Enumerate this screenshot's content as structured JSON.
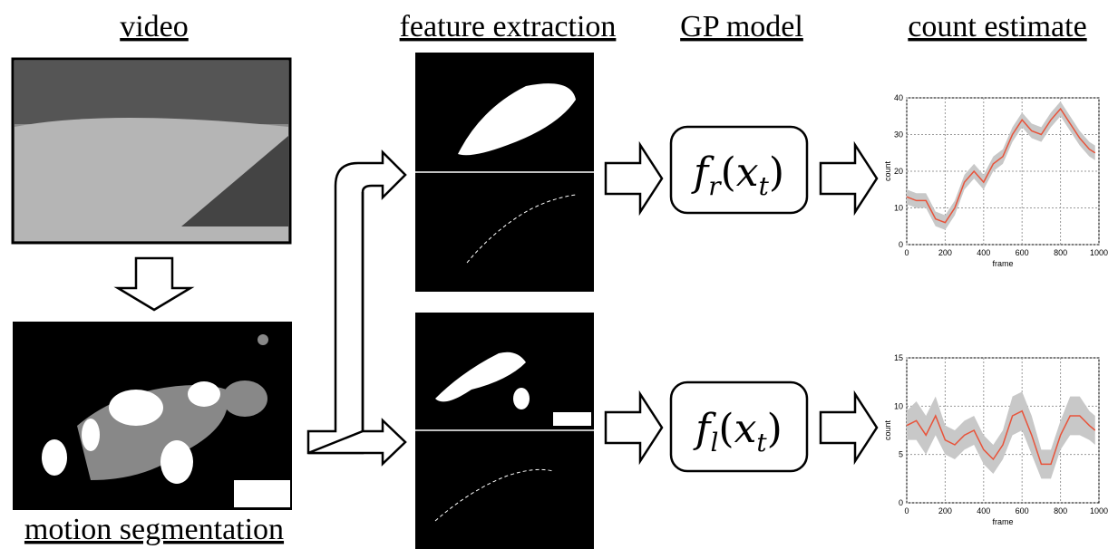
{
  "headings": {
    "video": "video",
    "features": "feature extraction",
    "model": "GP model",
    "estimate": "count estimate",
    "segmentation": "motion segmentation"
  },
  "models": [
    {
      "parts": [
        "f",
        "r",
        "(",
        "x",
        "t",
        ")"
      ]
    },
    {
      "parts": [
        "f",
        "l",
        "(",
        "x",
        "t",
        ")"
      ]
    }
  ],
  "charts": [
    {
      "type": "line",
      "x_label": "frame",
      "y_label": "count",
      "color": "#e8533a",
      "band_color": "#c8c8c8",
      "x": [
        0,
        50,
        100,
        150,
        200,
        250,
        300,
        350,
        400,
        450,
        500,
        550,
        600,
        650,
        700,
        750,
        800,
        850,
        900,
        950,
        980
      ],
      "values": [
        13,
        12,
        12,
        7,
        6,
        10,
        17,
        20,
        17,
        22,
        24,
        30,
        34,
        31,
        30,
        34,
        37,
        33,
        29,
        26,
        25
      ],
      "lower": [
        11,
        10,
        10,
        5,
        4,
        8,
        15,
        18,
        15,
        20,
        22,
        28,
        32,
        29,
        28,
        32,
        35,
        31,
        27,
        24,
        23
      ],
      "upper": [
        15,
        14,
        14,
        9,
        8,
        12,
        19,
        22,
        19,
        24,
        26,
        32,
        36,
        33,
        32,
        36,
        39,
        35,
        31,
        28,
        27
      ],
      "xlim": [
        0,
        1000
      ],
      "xticks": [
        0,
        200,
        400,
        600,
        800,
        1000
      ],
      "ylim": [
        0,
        40
      ],
      "yticks": [
        0,
        10,
        20,
        30,
        40
      ],
      "grid": true
    },
    {
      "type": "line",
      "x_label": "frame",
      "y_label": "count",
      "color": "#e8533a",
      "band_color": "#c8c8c8",
      "x": [
        0,
        50,
        100,
        150,
        200,
        250,
        300,
        350,
        400,
        450,
        500,
        550,
        600,
        650,
        700,
        750,
        800,
        850,
        900,
        950,
        980
      ],
      "values": [
        8,
        8.5,
        7,
        9,
        6.5,
        6,
        7,
        7.5,
        5.5,
        4.5,
        6,
        9,
        9.5,
        7,
        4,
        4,
        7,
        9,
        9,
        8,
        7.5
      ],
      "lower": [
        6.5,
        6.5,
        5,
        7,
        5,
        4.5,
        5.5,
        6,
        4,
        3,
        4.5,
        7,
        7.5,
        5,
        2.5,
        2.5,
        5.5,
        7,
        7,
        6.5,
        6
      ],
      "upper": [
        9.5,
        10.5,
        9,
        11,
        8,
        7.5,
        8.5,
        9,
        7,
        6,
        7.5,
        11,
        11.5,
        9,
        5.5,
        5.5,
        8.5,
        11,
        11,
        9.5,
        9
      ],
      "xlim": [
        0,
        1000
      ],
      "xticks": [
        0,
        200,
        400,
        600,
        800,
        1000
      ],
      "ylim": [
        0,
        15
      ],
      "yticks": [
        0,
        5,
        10,
        15
      ],
      "grid": true
    }
  ]
}
